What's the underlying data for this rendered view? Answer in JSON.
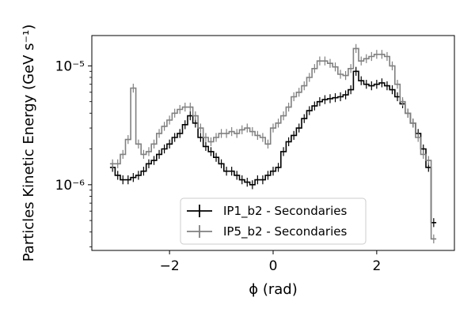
{
  "chart_data": {
    "type": "line",
    "title": "",
    "xlabel": "ϕ (rad)",
    "ylabel": "Particles Kinetic Energy (GeV s⁻¹)",
    "xlim": [
      -3.5,
      3.5
    ],
    "ylim": [
      2.8e-07,
      1.8e-05
    ],
    "yscale": "log",
    "grid": false,
    "legend_position": "lower-center",
    "x_ticks": [
      {
        "value": -2,
        "label": "−2"
      },
      {
        "value": 0,
        "label": "0"
      },
      {
        "value": 2,
        "label": "2"
      }
    ],
    "y_ticks": [
      {
        "value": 1e-06,
        "label": "10⁻⁶"
      },
      {
        "value": 1e-05,
        "label": "10⁻⁵"
      }
    ],
    "x": [
      -3.1,
      -3.0,
      -2.9,
      -2.8,
      -2.7,
      -2.6,
      -2.5,
      -2.4,
      -2.3,
      -2.2,
      -2.1,
      -2.0,
      -1.9,
      -1.8,
      -1.7,
      -1.6,
      -1.5,
      -1.4,
      -1.3,
      -1.2,
      -1.1,
      -1.0,
      -0.9,
      -0.8,
      -0.7,
      -0.6,
      -0.5,
      -0.4,
      -0.3,
      -0.2,
      -0.1,
      0.0,
      0.1,
      0.2,
      0.3,
      0.4,
      0.5,
      0.6,
      0.7,
      0.8,
      0.9,
      1.0,
      1.1,
      1.2,
      1.3,
      1.4,
      1.5,
      1.6,
      1.7,
      1.8,
      1.9,
      2.0,
      2.1,
      2.2,
      2.3,
      2.4,
      2.5,
      2.6,
      2.7,
      2.8,
      2.9,
      3.0,
      3.1
    ],
    "series": [
      {
        "name": "IP1_b2 - Secondaries",
        "color": "#000000",
        "values": [
          1.4e-06,
          1.2e-06,
          1.1e-06,
          1.1e-06,
          1.15e-06,
          1.2e-06,
          1.3e-06,
          1.5e-06,
          1.6e-06,
          1.8e-06,
          2e-06,
          2.2e-06,
          2.5e-06,
          2.7e-06,
          3.2e-06,
          3.8e-06,
          3.3e-06,
          2.5e-06,
          2.1e-06,
          1.9e-06,
          1.7e-06,
          1.5e-06,
          1.3e-06,
          1.3e-06,
          1.2e-06,
          1.1e-06,
          1.05e-06,
          1e-06,
          1.1e-06,
          1.1e-06,
          1.2e-06,
          1.3e-06,
          1.4e-06,
          1.9e-06,
          2.3e-06,
          2.6e-06,
          3e-06,
          3.6e-06,
          4.2e-06,
          4.6e-06,
          5e-06,
          5.2e-06,
          5.3e-06,
          5.4e-06,
          5.5e-06,
          5.7e-06,
          6.3e-06,
          9e-06,
          7.5e-06,
          7e-06,
          6.8e-06,
          7e-06,
          7.2e-06,
          6.8e-06,
          6.3e-06,
          5.5e-06,
          4.8e-06,
          4e-06,
          3.3e-06,
          2.7e-06,
          2e-06,
          1.4e-06,
          4.8e-07
        ]
      },
      {
        "name": "IP5_b2 - Secondaries",
        "color": "#808080",
        "values": [
          1.5e-06,
          1.5e-06,
          1.8e-06,
          2.4e-06,
          6.5e-06,
          2.2e-06,
          1.8e-06,
          1.9e-06,
          2.2e-06,
          2.7e-06,
          3.1e-06,
          3.5e-06,
          4e-06,
          4.3e-06,
          4.5e-06,
          4.5e-06,
          3.8e-06,
          3e-06,
          2.5e-06,
          2.3e-06,
          2.5e-06,
          2.7e-06,
          2.7e-06,
          2.8e-06,
          2.7e-06,
          2.9e-06,
          3e-06,
          2.8e-06,
          2.6e-06,
          2.5e-06,
          2.2e-06,
          3e-06,
          3.3e-06,
          3.8e-06,
          4.5e-06,
          5.5e-06,
          6e-06,
          6.8e-06,
          8e-06,
          9.5e-06,
          1.1e-05,
          1.1e-05,
          1.05e-05,
          9.8e-06,
          8.5e-06,
          8.3e-06,
          9.5e-06,
          1.4e-05,
          1.1e-05,
          1.15e-05,
          1.2e-05,
          1.25e-05,
          1.25e-05,
          1.2e-05,
          1e-05,
          7e-06,
          5e-06,
          4e-06,
          3.3e-06,
          2.5e-06,
          1.8e-06,
          1.6e-06,
          3.5e-07
        ]
      }
    ]
  }
}
